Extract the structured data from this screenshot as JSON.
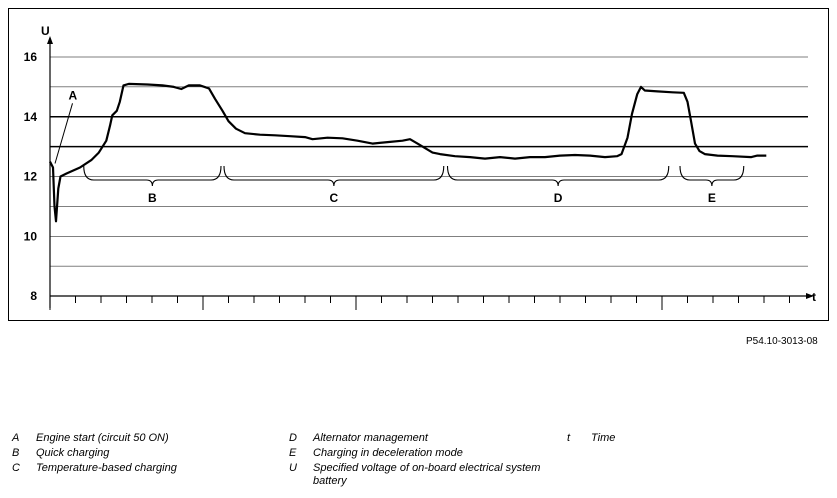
{
  "figure_id": "P54.10-3013-08",
  "chart_data": {
    "type": "line",
    "ylabel": "U",
    "xlabel": "t",
    "ylim": [
      8,
      16.5
    ],
    "yticks": [
      8,
      10,
      12,
      14,
      16
    ],
    "gridlines": [
      9,
      10,
      11,
      12,
      13,
      14,
      15,
      16
    ],
    "highlight_lines": [
      13,
      14
    ],
    "grid": true,
    "xlim": [
      0,
      100
    ],
    "series": [
      {
        "values": [
          [
            0.0,
            12.5
          ],
          [
            0.4,
            12.3
          ],
          [
            0.6,
            11.0
          ],
          [
            0.8,
            10.5
          ],
          [
            1.1,
            11.6
          ],
          [
            1.4,
            12.0
          ],
          [
            2.2,
            12.1
          ],
          [
            4.0,
            12.3
          ],
          [
            5.5,
            12.55
          ],
          [
            6.5,
            12.8
          ],
          [
            7.5,
            13.2
          ],
          [
            8.0,
            13.7
          ],
          [
            8.3,
            14.05
          ],
          [
            8.9,
            14.2
          ],
          [
            9.3,
            14.5
          ],
          [
            9.8,
            15.05
          ],
          [
            10.5,
            15.1
          ],
          [
            13.0,
            15.08
          ],
          [
            15.0,
            15.05
          ],
          [
            16.5,
            15.0
          ],
          [
            17.5,
            14.93
          ],
          [
            18.5,
            15.05
          ],
          [
            20.0,
            15.05
          ],
          [
            21.2,
            14.95
          ],
          [
            22.0,
            14.6
          ],
          [
            23.0,
            14.2
          ],
          [
            23.8,
            13.85
          ],
          [
            24.8,
            13.6
          ],
          [
            26.0,
            13.45
          ],
          [
            28.0,
            13.4
          ],
          [
            30.0,
            13.38
          ],
          [
            32.0,
            13.35
          ],
          [
            34.0,
            13.32
          ],
          [
            35.0,
            13.25
          ],
          [
            37.0,
            13.3
          ],
          [
            39.0,
            13.28
          ],
          [
            41.0,
            13.2
          ],
          [
            43.0,
            13.1
          ],
          [
            45.0,
            13.15
          ],
          [
            47.0,
            13.2
          ],
          [
            48.0,
            13.25
          ],
          [
            49.0,
            13.1
          ],
          [
            50.0,
            12.95
          ],
          [
            51.0,
            12.8
          ],
          [
            52.0,
            12.75
          ],
          [
            54.0,
            12.68
          ],
          [
            56.0,
            12.65
          ],
          [
            58.0,
            12.6
          ],
          [
            60.0,
            12.65
          ],
          [
            62.0,
            12.6
          ],
          [
            64.0,
            12.65
          ],
          [
            66.0,
            12.65
          ],
          [
            68.0,
            12.7
          ],
          [
            70.0,
            12.72
          ],
          [
            72.0,
            12.7
          ],
          [
            74.0,
            12.65
          ],
          [
            75.6,
            12.68
          ],
          [
            76.2,
            12.75
          ],
          [
            77.0,
            13.3
          ],
          [
            77.6,
            14.1
          ],
          [
            78.3,
            14.75
          ],
          [
            78.8,
            15.0
          ],
          [
            79.3,
            14.88
          ],
          [
            81.0,
            14.85
          ],
          [
            83.0,
            14.82
          ],
          [
            84.5,
            14.8
          ],
          [
            85.0,
            14.5
          ],
          [
            85.5,
            13.8
          ],
          [
            86.0,
            13.1
          ],
          [
            86.6,
            12.85
          ],
          [
            87.3,
            12.75
          ],
          [
            89.0,
            12.7
          ],
          [
            91.0,
            12.68
          ],
          [
            93.5,
            12.65
          ],
          [
            94.3,
            12.7
          ],
          [
            95.5,
            12.7
          ]
        ]
      }
    ],
    "brackets": [
      {
        "label": "B",
        "from": 4.5,
        "to": 22.8
      },
      {
        "label": "C",
        "from": 23.2,
        "to": 52.5
      },
      {
        "label": "D",
        "from": 53.0,
        "to": 82.5
      },
      {
        "label": "E",
        "from": 84.0,
        "to": 92.5
      }
    ],
    "annotations": [
      {
        "label": "A",
        "x": 2.2,
        "y": 14.45,
        "points_to": [
          0.4,
          12.3
        ]
      }
    ]
  },
  "legend": [
    {
      "key": "A",
      "text": "Engine start (circuit 50 ON)"
    },
    {
      "key": "B",
      "text": "Quick charging"
    },
    {
      "key": "C",
      "text": "Temperature-based charging"
    },
    {
      "key": "D",
      "text": "Alternator management"
    },
    {
      "key": "E",
      "text": "Charging in deceleration mode"
    },
    {
      "key": "U",
      "text": "Specified voltage of on-board electrical system battery"
    },
    {
      "key": "t",
      "text": "Time"
    }
  ]
}
